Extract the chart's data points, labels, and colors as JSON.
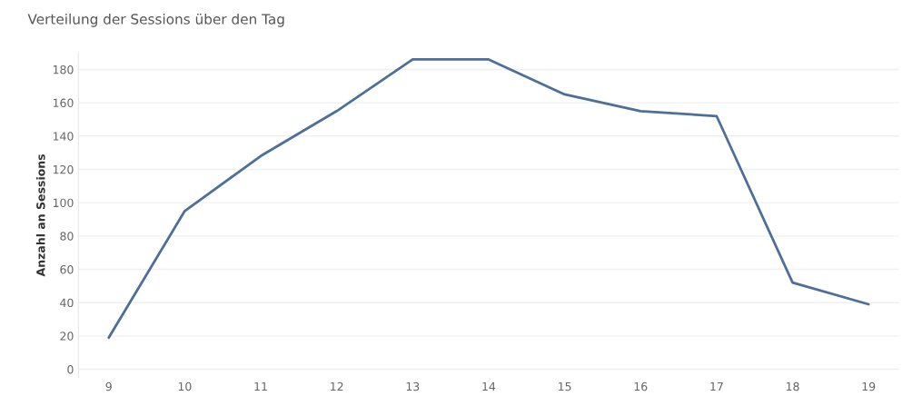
{
  "chart_data": {
    "type": "line",
    "title": "Verteilung der Sessions über den Tag",
    "ylabel": "Anzahl an Sessions",
    "x": [
      9,
      10,
      11,
      12,
      13,
      14,
      15,
      16,
      17,
      18,
      19
    ],
    "series": [
      {
        "color": "#4e6f9a",
        "values": [
          19,
          95,
          128,
          155,
          186,
          186,
          165,
          155,
          152,
          52,
          39
        ]
      }
    ],
    "xlim": [
      8.6,
      19.4
    ],
    "xticks": [
      9,
      10,
      11,
      12,
      13,
      14,
      15,
      16,
      17,
      18,
      19
    ],
    "ylim": [
      -5,
      190
    ],
    "yticks": [
      0,
      20,
      40,
      60,
      80,
      100,
      120,
      140,
      160,
      180
    ],
    "grid": "y",
    "marker": "none",
    "line_style": "solid"
  }
}
